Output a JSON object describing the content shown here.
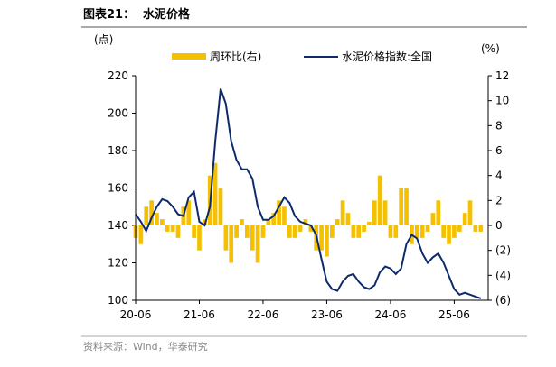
{
  "chart_data": {
    "type": "bar-line",
    "figure_label": "图表21：",
    "title": "水泥价格",
    "y_label": "(点)",
    "y2_label": "(%)",
    "source": "资料来源：Wind，华泰研究",
    "categories": [
      "20-06",
      null,
      null,
      null,
      null,
      null,
      null,
      null,
      null,
      null,
      null,
      null,
      "21-06",
      null,
      null,
      null,
      null,
      null,
      null,
      null,
      null,
      null,
      null,
      null,
      "22-06",
      null,
      null,
      null,
      null,
      null,
      null,
      null,
      null,
      null,
      null,
      null,
      "23-06",
      null,
      null,
      null,
      null,
      null,
      null,
      null,
      null,
      null,
      null,
      null,
      "24-06",
      null,
      null,
      null,
      null,
      null,
      null,
      null,
      null,
      null,
      null,
      null,
      "25-06",
      null,
      null,
      null,
      null,
      null,
      null
    ],
    "series": [
      {
        "name": "周环比(右)",
        "type": "bar",
        "axis": "y2",
        "color": "#f5c000",
        "values": [
          -1,
          -1.5,
          1.5,
          2,
          1,
          0.5,
          -0.5,
          -0.5,
          -1,
          1.5,
          2,
          -1,
          -2,
          0.5,
          4,
          5,
          3,
          -2,
          -3,
          -1,
          0.5,
          -1,
          -2,
          -3,
          -1,
          0.5,
          1,
          2,
          1.5,
          -1,
          -1,
          -0.5,
          0.5,
          -0.5,
          -2,
          -2,
          -2.5,
          -1,
          0.5,
          2,
          1,
          -1,
          -1,
          -0.5,
          0.3,
          2,
          4,
          2,
          -1,
          -1,
          3,
          3,
          -1.5,
          -1,
          -1,
          -0.5,
          1,
          2,
          -1,
          -1.5,
          -1,
          -0.5,
          1,
          2,
          -0.5,
          -0.5,
          null
        ]
      },
      {
        "name": "水泥价格指数:全国",
        "type": "line",
        "color": "#0d2a6b",
        "values": [
          146,
          142,
          137,
          144,
          150,
          154,
          153,
          150,
          146,
          145,
          155,
          158,
          142,
          140,
          150,
          185,
          213,
          205,
          185,
          175,
          170,
          170,
          165,
          150,
          143,
          143,
          145,
          150,
          155,
          152,
          145,
          142,
          141,
          140,
          135,
          122,
          110,
          106,
          105,
          110,
          113,
          114,
          110,
          107,
          106,
          108,
          115,
          118,
          117,
          114,
          117,
          130,
          135,
          133,
          125,
          120,
          123,
          125,
          120,
          113,
          106,
          103,
          104,
          103,
          102,
          101,
          null
        ]
      }
    ],
    "ylim": [
      100,
      220
    ],
    "yticks": [
      100,
      120,
      140,
      160,
      180,
      200,
      220
    ],
    "y2lim": [
      -6,
      12
    ],
    "y2ticks": [
      {
        "value": -6,
        "label": "(6)"
      },
      {
        "value": -4,
        "label": "(4)"
      },
      {
        "value": -2,
        "label": "(2)"
      },
      0,
      2,
      4,
      6,
      8,
      10,
      12
    ]
  }
}
